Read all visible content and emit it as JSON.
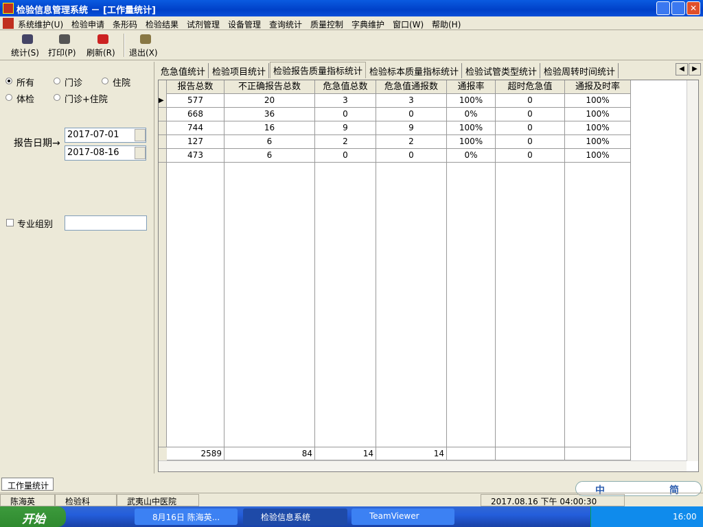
{
  "title_bar": {
    "title": "检验信息管理系统 － [工作量统计]"
  },
  "menu": [
    "系统维护(U)",
    "检验申请",
    "条形码",
    "检验结果",
    "试剂管理",
    "设备管理",
    "查询统计",
    "质量控制",
    "字典维护",
    "窗口(W)",
    "帮助(H)"
  ],
  "toolbar": [
    "统计(S)",
    "打印(P)",
    "刷新(R)",
    "退出(X)"
  ],
  "filter": {
    "patient_types": [
      "所有",
      "门诊",
      "住院",
      "体检",
      "门诊+住院"
    ],
    "date_label": "报告日期→",
    "date_from": "2017-07-01",
    "date_to": "2017-08-16",
    "group_label": "专业组别"
  },
  "tabs": [
    "危急值统计",
    "检验项目统计",
    "检验报告质量指标统计",
    "检验标本质量指标统计",
    "检验试管类型统计",
    "检验周转时间统计"
  ],
  "table": {
    "columns": [
      "报告总数",
      "不正确报告总数",
      "危急值总数",
      "危急值通报数",
      "通报率",
      "超时危急值",
      "通报及时率"
    ],
    "rows": [
      [
        "577",
        "20",
        "3",
        "3",
        "100%",
        "0",
        "100%"
      ],
      [
        "668",
        "36",
        "0",
        "0",
        "0%",
        "0",
        "100%"
      ],
      [
        "744",
        "16",
        "9",
        "9",
        "100%",
        "0",
        "100%"
      ],
      [
        "127",
        "6",
        "2",
        "2",
        "100%",
        "0",
        "100%"
      ],
      [
        "473",
        "6",
        "0",
        "0",
        "0%",
        "0",
        "100%"
      ]
    ],
    "totals": [
      "2589",
      "84",
      "14",
      "14"
    ]
  },
  "bottom_tab": "工作量统计",
  "status_bar": [
    "陈海英",
    "检验科",
    "武夷山中医院",
    "2017.08.16 下午 04:00:30"
  ],
  "taskbar": {
    "start": "开始",
    "tasks": [
      "8月16日  陈海英...",
      "检验信息系统",
      "TeamViewer"
    ],
    "clock": "16:00"
  },
  "ime": [
    "中",
    "简"
  ]
}
